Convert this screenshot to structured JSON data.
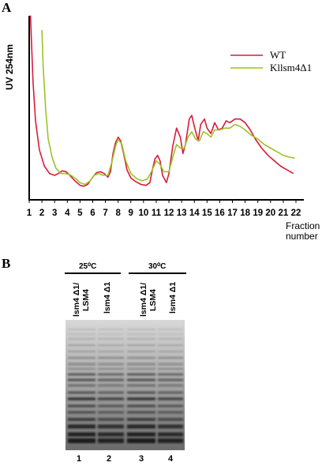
{
  "panel_a_label": "A",
  "panel_b_label": "B",
  "chart_data": {
    "type": "line",
    "ylabel": "UV 254nm",
    "xlabel": "Fraction number",
    "xlabel_lines": [
      "Fraction",
      "number"
    ],
    "x_ticks": [
      "1",
      "2",
      "3",
      "4",
      "5",
      "6",
      "7",
      "8",
      "9",
      "10",
      "11",
      "12",
      "13",
      "14",
      "15",
      "16",
      "17",
      "18",
      "19",
      "20",
      "21",
      "22"
    ],
    "xlim": [
      1,
      22
    ],
    "ylim": [
      0,
      1
    ],
    "legend_position": "top-right",
    "series": [
      {
        "name": "WT",
        "color": "#d81b3c",
        "points": [
          [
            1.1,
            0.98
          ],
          [
            1.3,
            0.62
          ],
          [
            1.5,
            0.4
          ],
          [
            1.8,
            0.24
          ],
          [
            2.2,
            0.15
          ],
          [
            2.6,
            0.11
          ],
          [
            3.0,
            0.1
          ],
          [
            3.3,
            0.11
          ],
          [
            3.6,
            0.125
          ],
          [
            3.9,
            0.12
          ],
          [
            4.2,
            0.1
          ],
          [
            4.6,
            0.07
          ],
          [
            5.0,
            0.045
          ],
          [
            5.3,
            0.04
          ],
          [
            5.6,
            0.05
          ],
          [
            6.0,
            0.09
          ],
          [
            6.3,
            0.115
          ],
          [
            6.6,
            0.12
          ],
          [
            6.9,
            0.11
          ],
          [
            7.2,
            0.09
          ],
          [
            7.4,
            0.12
          ],
          [
            7.6,
            0.22
          ],
          [
            7.8,
            0.28
          ],
          [
            8.0,
            0.31
          ],
          [
            8.2,
            0.29
          ],
          [
            8.4,
            0.23
          ],
          [
            8.7,
            0.13
          ],
          [
            9.0,
            0.085
          ],
          [
            9.4,
            0.065
          ],
          [
            9.8,
            0.05
          ],
          [
            10.2,
            0.045
          ],
          [
            10.5,
            0.06
          ],
          [
            10.7,
            0.13
          ],
          [
            10.9,
            0.19
          ],
          [
            11.1,
            0.21
          ],
          [
            11.3,
            0.18
          ],
          [
            11.5,
            0.1
          ],
          [
            11.8,
            0.06
          ],
          [
            12.0,
            0.11
          ],
          [
            12.3,
            0.26
          ],
          [
            12.6,
            0.36
          ],
          [
            12.9,
            0.31
          ],
          [
            13.1,
            0.22
          ],
          [
            13.3,
            0.27
          ],
          [
            13.6,
            0.41
          ],
          [
            13.8,
            0.43
          ],
          [
            14.0,
            0.37
          ],
          [
            14.3,
            0.29
          ],
          [
            14.5,
            0.38
          ],
          [
            14.8,
            0.41
          ],
          [
            15.0,
            0.36
          ],
          [
            15.3,
            0.33
          ],
          [
            15.6,
            0.39
          ],
          [
            15.9,
            0.35
          ],
          [
            16.2,
            0.36
          ],
          [
            16.5,
            0.4
          ],
          [
            16.8,
            0.39
          ],
          [
            17.2,
            0.41
          ],
          [
            17.6,
            0.41
          ],
          [
            18.0,
            0.39
          ],
          [
            18.4,
            0.35
          ],
          [
            18.8,
            0.3
          ],
          [
            19.3,
            0.25
          ],
          [
            19.8,
            0.21
          ],
          [
            20.3,
            0.18
          ],
          [
            20.8,
            0.15
          ],
          [
            21.3,
            0.13
          ],
          [
            21.8,
            0.11
          ]
        ]
      },
      {
        "name": "Kllsm4Δ1",
        "color": "#9cc425",
        "points": [
          [
            2.0,
            0.9
          ],
          [
            2.1,
            0.7
          ],
          [
            2.3,
            0.46
          ],
          [
            2.5,
            0.3
          ],
          [
            2.8,
            0.2
          ],
          [
            3.1,
            0.14
          ],
          [
            3.5,
            0.11
          ],
          [
            3.9,
            0.11
          ],
          [
            4.3,
            0.1
          ],
          [
            4.7,
            0.08
          ],
          [
            5.0,
            0.06
          ],
          [
            5.4,
            0.05
          ],
          [
            5.8,
            0.07
          ],
          [
            6.1,
            0.1
          ],
          [
            6.5,
            0.11
          ],
          [
            6.8,
            0.1
          ],
          [
            7.2,
            0.1
          ],
          [
            7.5,
            0.17
          ],
          [
            7.8,
            0.26
          ],
          [
            8.0,
            0.3
          ],
          [
            8.3,
            0.27
          ],
          [
            8.6,
            0.18
          ],
          [
            9.0,
            0.11
          ],
          [
            9.5,
            0.08
          ],
          [
            9.9,
            0.07
          ],
          [
            10.3,
            0.08
          ],
          [
            10.7,
            0.13
          ],
          [
            11.0,
            0.18
          ],
          [
            11.3,
            0.16
          ],
          [
            11.6,
            0.12
          ],
          [
            12.0,
            0.12
          ],
          [
            12.3,
            0.2
          ],
          [
            12.6,
            0.27
          ],
          [
            12.9,
            0.25
          ],
          [
            13.2,
            0.25
          ],
          [
            13.5,
            0.31
          ],
          [
            13.8,
            0.34
          ],
          [
            14.1,
            0.3
          ],
          [
            14.4,
            0.29
          ],
          [
            14.7,
            0.34
          ],
          [
            15.0,
            0.33
          ],
          [
            15.3,
            0.31
          ],
          [
            15.6,
            0.35
          ],
          [
            16.0,
            0.35
          ],
          [
            16.4,
            0.36
          ],
          [
            16.8,
            0.36
          ],
          [
            17.2,
            0.38
          ],
          [
            17.6,
            0.37
          ],
          [
            18.0,
            0.35
          ],
          [
            18.5,
            0.32
          ],
          [
            19.0,
            0.3
          ],
          [
            19.5,
            0.27
          ],
          [
            20.0,
            0.25
          ],
          [
            20.5,
            0.23
          ],
          [
            21.0,
            0.21
          ],
          [
            21.5,
            0.2
          ],
          [
            21.9,
            0.195
          ]
        ]
      }
    ]
  },
  "gel": {
    "groups": [
      {
        "temperature": "25⁰C",
        "lanes": [
          "lsm4 Δ1/ LSM4",
          "lsm4 Δ1"
        ]
      },
      {
        "temperature": "30⁰C",
        "lanes": [
          "lsm4 Δ1/ LSM4",
          "lsm4 Δ1"
        ]
      }
    ],
    "lane_lines": [
      [
        "lsm4 Δ1/",
        "LSM4"
      ],
      [
        "lsm4 Δ1"
      ],
      [
        "lsm4 Δ1/",
        "LSM4"
      ],
      [
        "lsm4 Δ1"
      ]
    ],
    "lane_numbers": [
      "1",
      "2",
      "3",
      "4"
    ]
  }
}
